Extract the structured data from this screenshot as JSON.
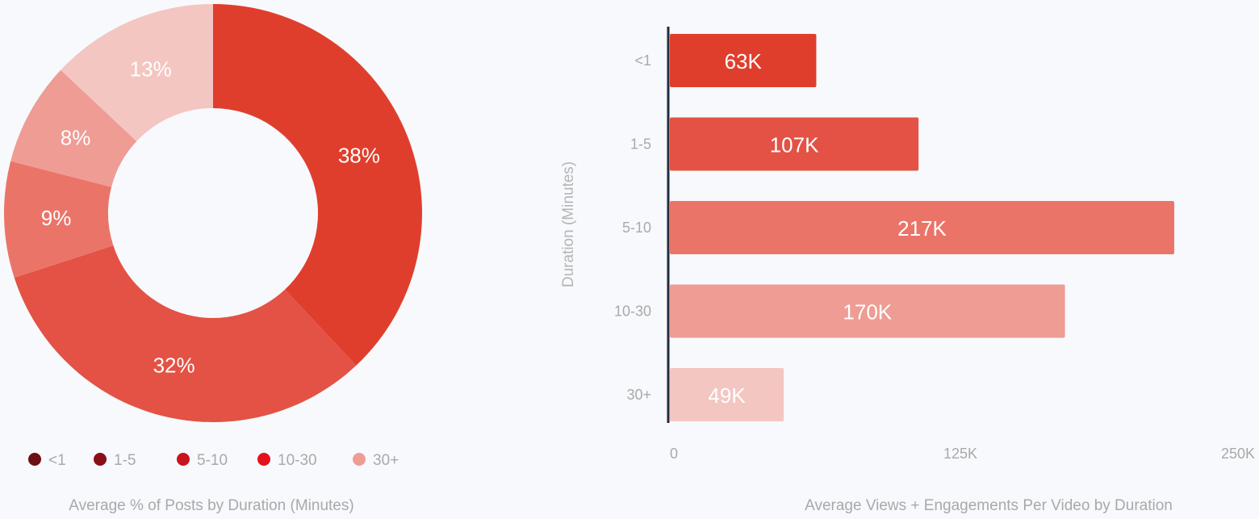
{
  "chart_data": [
    {
      "type": "pie",
      "donut": true,
      "categories": [
        "<1",
        "1-5",
        "5-10",
        "10-30",
        "30+"
      ],
      "values": [
        38,
        32,
        9,
        8,
        13
      ],
      "labels": [
        "38%",
        "32%",
        "9%",
        "8%",
        "13%"
      ],
      "slice_colors": [
        "#e03e2d",
        "#e35244",
        "#eb7469",
        "#ee9c94",
        "#f4c6c1"
      ],
      "legend": {
        "placement": "bottom",
        "items": [
          "<1",
          "1-5",
          "5-10",
          "10-30",
          "30+"
        ],
        "colors": [
          "#6e0f14",
          "#8a1015",
          "#c8141c",
          "#e4121b",
          "#ee9c94"
        ]
      },
      "caption": "Average % of Posts by Duration (Minutes)"
    },
    {
      "type": "bar",
      "orientation": "horizontal",
      "categories": [
        "<1",
        "1-5",
        "5-10",
        "10-30",
        "30+"
      ],
      "values": [
        63000,
        107000,
        217000,
        170000,
        49000
      ],
      "labels": [
        "63K",
        "107K",
        "217K",
        "170K",
        "49K"
      ],
      "colors": [
        "#e03e2d",
        "#e35244",
        "#eb7469",
        "#ee9c94",
        "#f4c6c1"
      ],
      "xlim": [
        0,
        250000
      ],
      "xticks": [
        "0",
        "125K",
        "250K"
      ],
      "ylabel": "Duration (Minutes)",
      "caption": "Average Views + Engagements Per Video by Duration",
      "grid": false
    }
  ]
}
